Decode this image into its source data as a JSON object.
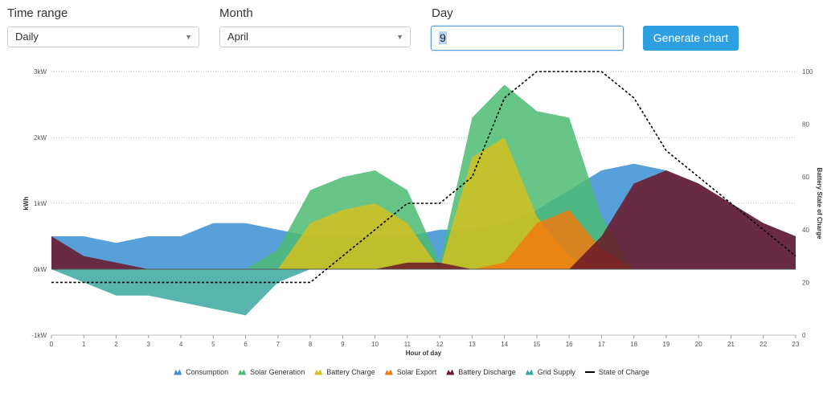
{
  "controls": {
    "time_range": {
      "label": "Time range",
      "value": "Daily"
    },
    "month": {
      "label": "Month",
      "value": "April"
    },
    "day": {
      "label": "Day",
      "value": "9"
    },
    "generate_label": "Generate chart",
    "arrow_glyph": "▼"
  },
  "chart_data": {
    "type": "area",
    "x": [
      0,
      1,
      2,
      3,
      4,
      5,
      6,
      7,
      8,
      9,
      10,
      11,
      12,
      13,
      14,
      15,
      16,
      17,
      18,
      19,
      20,
      21,
      22,
      23
    ],
    "xlabel": "Hour of day",
    "ylabel": "kWh",
    "y2label": "Battery State of Charge",
    "ylim": [
      -1,
      3
    ],
    "y2lim": [
      0,
      100
    ],
    "yticks": [
      "-1kW",
      "0kW",
      "1kW",
      "2kW",
      "3kW"
    ],
    "y2ticks": [
      "0",
      "20",
      "40",
      "60",
      "80",
      "100"
    ],
    "grid": true,
    "legend_position": "bottom",
    "series": [
      {
        "name": "Consumption",
        "color": "#3b8fd4",
        "values": [
          0.5,
          0.5,
          0.4,
          0.5,
          0.5,
          0.7,
          0.7,
          0.6,
          0.5,
          0.5,
          0.5,
          0.5,
          0.6,
          0.6,
          0.7,
          0.9,
          1.2,
          1.5,
          1.6,
          1.5,
          1.3,
          1.0,
          0.7,
          0.5
        ]
      },
      {
        "name": "Solar Generation",
        "color": "#4cbb73",
        "values": [
          0,
          0,
          0,
          0,
          0,
          0,
          0,
          0.3,
          1.2,
          1.4,
          1.5,
          1.2,
          0.1,
          2.3,
          2.8,
          2.4,
          2.3,
          0.8,
          0,
          0,
          0,
          0,
          0,
          0
        ]
      },
      {
        "name": "Battery Charge",
        "color": "#d4c11e",
        "values": [
          0,
          0,
          0,
          0,
          0,
          0,
          0,
          0,
          0.7,
          0.9,
          1.0,
          0.7,
          0,
          1.7,
          2.0,
          0.8,
          0.2,
          0,
          0,
          0,
          0,
          0,
          0,
          0
        ]
      },
      {
        "name": "Solar Export",
        "color": "#ef7a10",
        "values": [
          0,
          0,
          0,
          0,
          0,
          0,
          0,
          0,
          0,
          0,
          0,
          0,
          0,
          0,
          0.1,
          0.7,
          0.9,
          0.3,
          0,
          0,
          0,
          0,
          0,
          0
        ]
      },
      {
        "name": "Battery Discharge",
        "color": "#6b1628",
        "values": [
          0.5,
          0.2,
          0.1,
          0,
          0,
          0,
          0,
          0,
          0,
          0,
          0,
          0.1,
          0.1,
          0,
          0,
          0,
          0,
          0.5,
          1.3,
          1.5,
          1.3,
          1.0,
          0.7,
          0.5
        ]
      },
      {
        "name": "Grid Supply",
        "color": "#3ba8a0",
        "values": [
          0,
          -0.2,
          -0.4,
          -0.4,
          -0.5,
          -0.6,
          -0.7,
          -0.2,
          0,
          0,
          0,
          0,
          0,
          0,
          0,
          0,
          0,
          0,
          0,
          0,
          0,
          0,
          0,
          0
        ]
      },
      {
        "name": "State of Charge",
        "color": "#000000",
        "axis": "right",
        "values": [
          20,
          20,
          20,
          20,
          20,
          20,
          20,
          20,
          20,
          30,
          40,
          50,
          50,
          60,
          90,
          100,
          100,
          100,
          90,
          70,
          60,
          50,
          40,
          30
        ]
      }
    ]
  }
}
